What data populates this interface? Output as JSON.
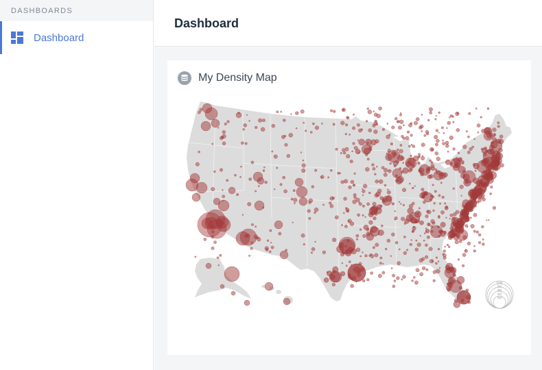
{
  "sidebar": {
    "section_label": "DASHBOARDS",
    "items": [
      {
        "label": "Dashboard",
        "icon": "dashboard-grid-icon",
        "active": true
      }
    ]
  },
  "header": {
    "title": "Dashboard"
  },
  "card": {
    "title": "My Density Map",
    "icon": "database-icon",
    "legend": {
      "labels": [
        "10M",
        "8M",
        "6M",
        "4M",
        "2M"
      ]
    }
  },
  "colors": {
    "accent": "#4a78d4",
    "land": "#dcdcdc",
    "bubble": "#a33a3a"
  }
}
